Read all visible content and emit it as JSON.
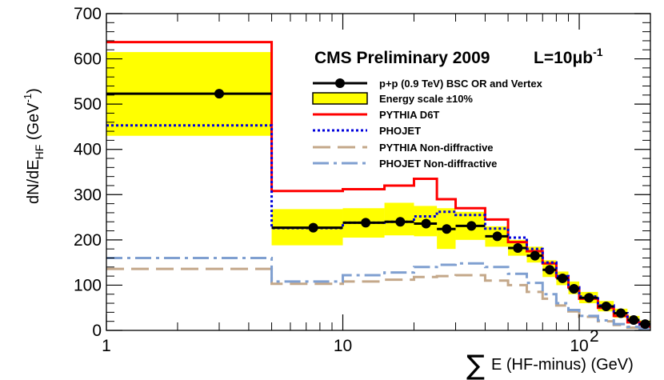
{
  "chart_data": {
    "type": "line",
    "title": "CMS Preliminary 2009",
    "luminosity": {
      "prefix": "L=10",
      "unit": "μb",
      "exponent": "-1"
    },
    "xlabel": {
      "sum_symbol": "∑",
      "text": "E (HF-minus) (GeV)"
    },
    "ylabel": {
      "main": "dN/dE",
      "sub": "HF",
      "unit_open": " (GeV",
      "unit_exp": "-1",
      "unit_close": ")"
    },
    "xscale": "log",
    "xlim": [
      1,
      200
    ],
    "ylim": [
      0,
      700
    ],
    "x_ticks": [
      {
        "value": 1,
        "label": "1"
      },
      {
        "value": 10,
        "label": "10"
      },
      {
        "value": 100,
        "label": "10",
        "exponent": "2"
      }
    ],
    "y_ticks": [
      0,
      100,
      200,
      300,
      400,
      500,
      600,
      700
    ],
    "bin_edges": [
      1,
      5,
      10,
      15,
      20,
      25,
      30,
      40,
      50,
      60,
      70,
      80,
      90,
      100,
      120,
      140,
      160,
      180,
      200
    ],
    "data_series": {
      "name": "p+p (0.9 TeV) BSC OR and Vertex",
      "color": "#000000",
      "points": [
        {
          "x": 3,
          "y": 523
        },
        {
          "x": 7.5,
          "y": 227
        },
        {
          "x": 12.5,
          "y": 238
        },
        {
          "x": 17.5,
          "y": 240
        },
        {
          "x": 22.5,
          "y": 236
        },
        {
          "x": 27.5,
          "y": 224
        },
        {
          "x": 35,
          "y": 231
        },
        {
          "x": 45,
          "y": 208
        },
        {
          "x": 55,
          "y": 182
        },
        {
          "x": 65,
          "y": 165
        },
        {
          "x": 75,
          "y": 134
        },
        {
          "x": 85,
          "y": 115
        },
        {
          "x": 95,
          "y": 92
        },
        {
          "x": 110,
          "y": 72
        },
        {
          "x": 130,
          "y": 53
        },
        {
          "x": 150,
          "y": 38
        },
        {
          "x": 170,
          "y": 23
        },
        {
          "x": 190,
          "y": 14
        }
      ]
    },
    "band": {
      "name": "Energy scale ±10%",
      "fill": "#ffff00",
      "edge": "#000000",
      "lower": [
        430,
        188,
        205,
        210,
        208,
        180,
        200,
        185,
        165,
        150,
        118,
        100,
        80,
        60,
        42,
        28,
        15,
        8
      ],
      "upper": [
        615,
        268,
        270,
        282,
        275,
        270,
        262,
        230,
        200,
        185,
        155,
        130,
        108,
        85,
        65,
        48,
        32,
        22
      ]
    },
    "series": [
      {
        "name": "PYTHIA D6T",
        "color": "#ff0000",
        "dash": "solid",
        "values": [
          637,
          308,
          312,
          320,
          335,
          290,
          270,
          245,
          195,
          175,
          148,
          118,
          95,
          70,
          50,
          32,
          18,
          8
        ]
      },
      {
        "name": "PHOJET",
        "color": "#0000dd",
        "dash": "dot",
        "values": [
          453,
          226,
          238,
          240,
          252,
          262,
          255,
          225,
          205,
          180,
          150,
          120,
          95,
          75,
          55,
          38,
          22,
          10
        ]
      },
      {
        "name": "PYTHIA Non-diffractive",
        "color": "#c4a88a",
        "dash": "longdash",
        "values": [
          136,
          103,
          108,
          112,
          118,
          120,
          122,
          110,
          100,
          85,
          70,
          55,
          42,
          30,
          20,
          12,
          6,
          2
        ]
      },
      {
        "name": "PHOJET Non-diffractive",
        "color": "#7f9fd0",
        "dash": "dashdot",
        "values": [
          160,
          108,
          122,
          128,
          140,
          145,
          148,
          140,
          125,
          105,
          80,
          60,
          45,
          32,
          22,
          14,
          8,
          4
        ]
      }
    ]
  }
}
